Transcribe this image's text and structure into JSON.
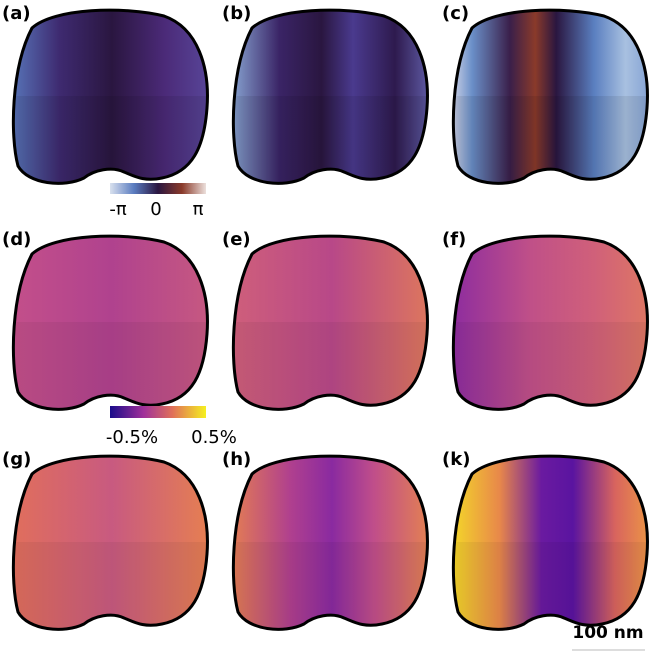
{
  "panels": [
    {
      "label": "(a)"
    },
    {
      "label": "(b)"
    },
    {
      "label": "(c)"
    },
    {
      "label": "(d)"
    },
    {
      "label": "(e)"
    },
    {
      "label": "(f)"
    },
    {
      "label": "(g)"
    },
    {
      "label": "(h)"
    },
    {
      "label": "(k)"
    }
  ],
  "phase_colorbar": {
    "labels": [
      "-π",
      "0",
      "π"
    ]
  },
  "strain_colorbar": {
    "labels": [
      "-0.5%",
      "0.5%"
    ]
  },
  "scale_bar": "100 nm"
}
